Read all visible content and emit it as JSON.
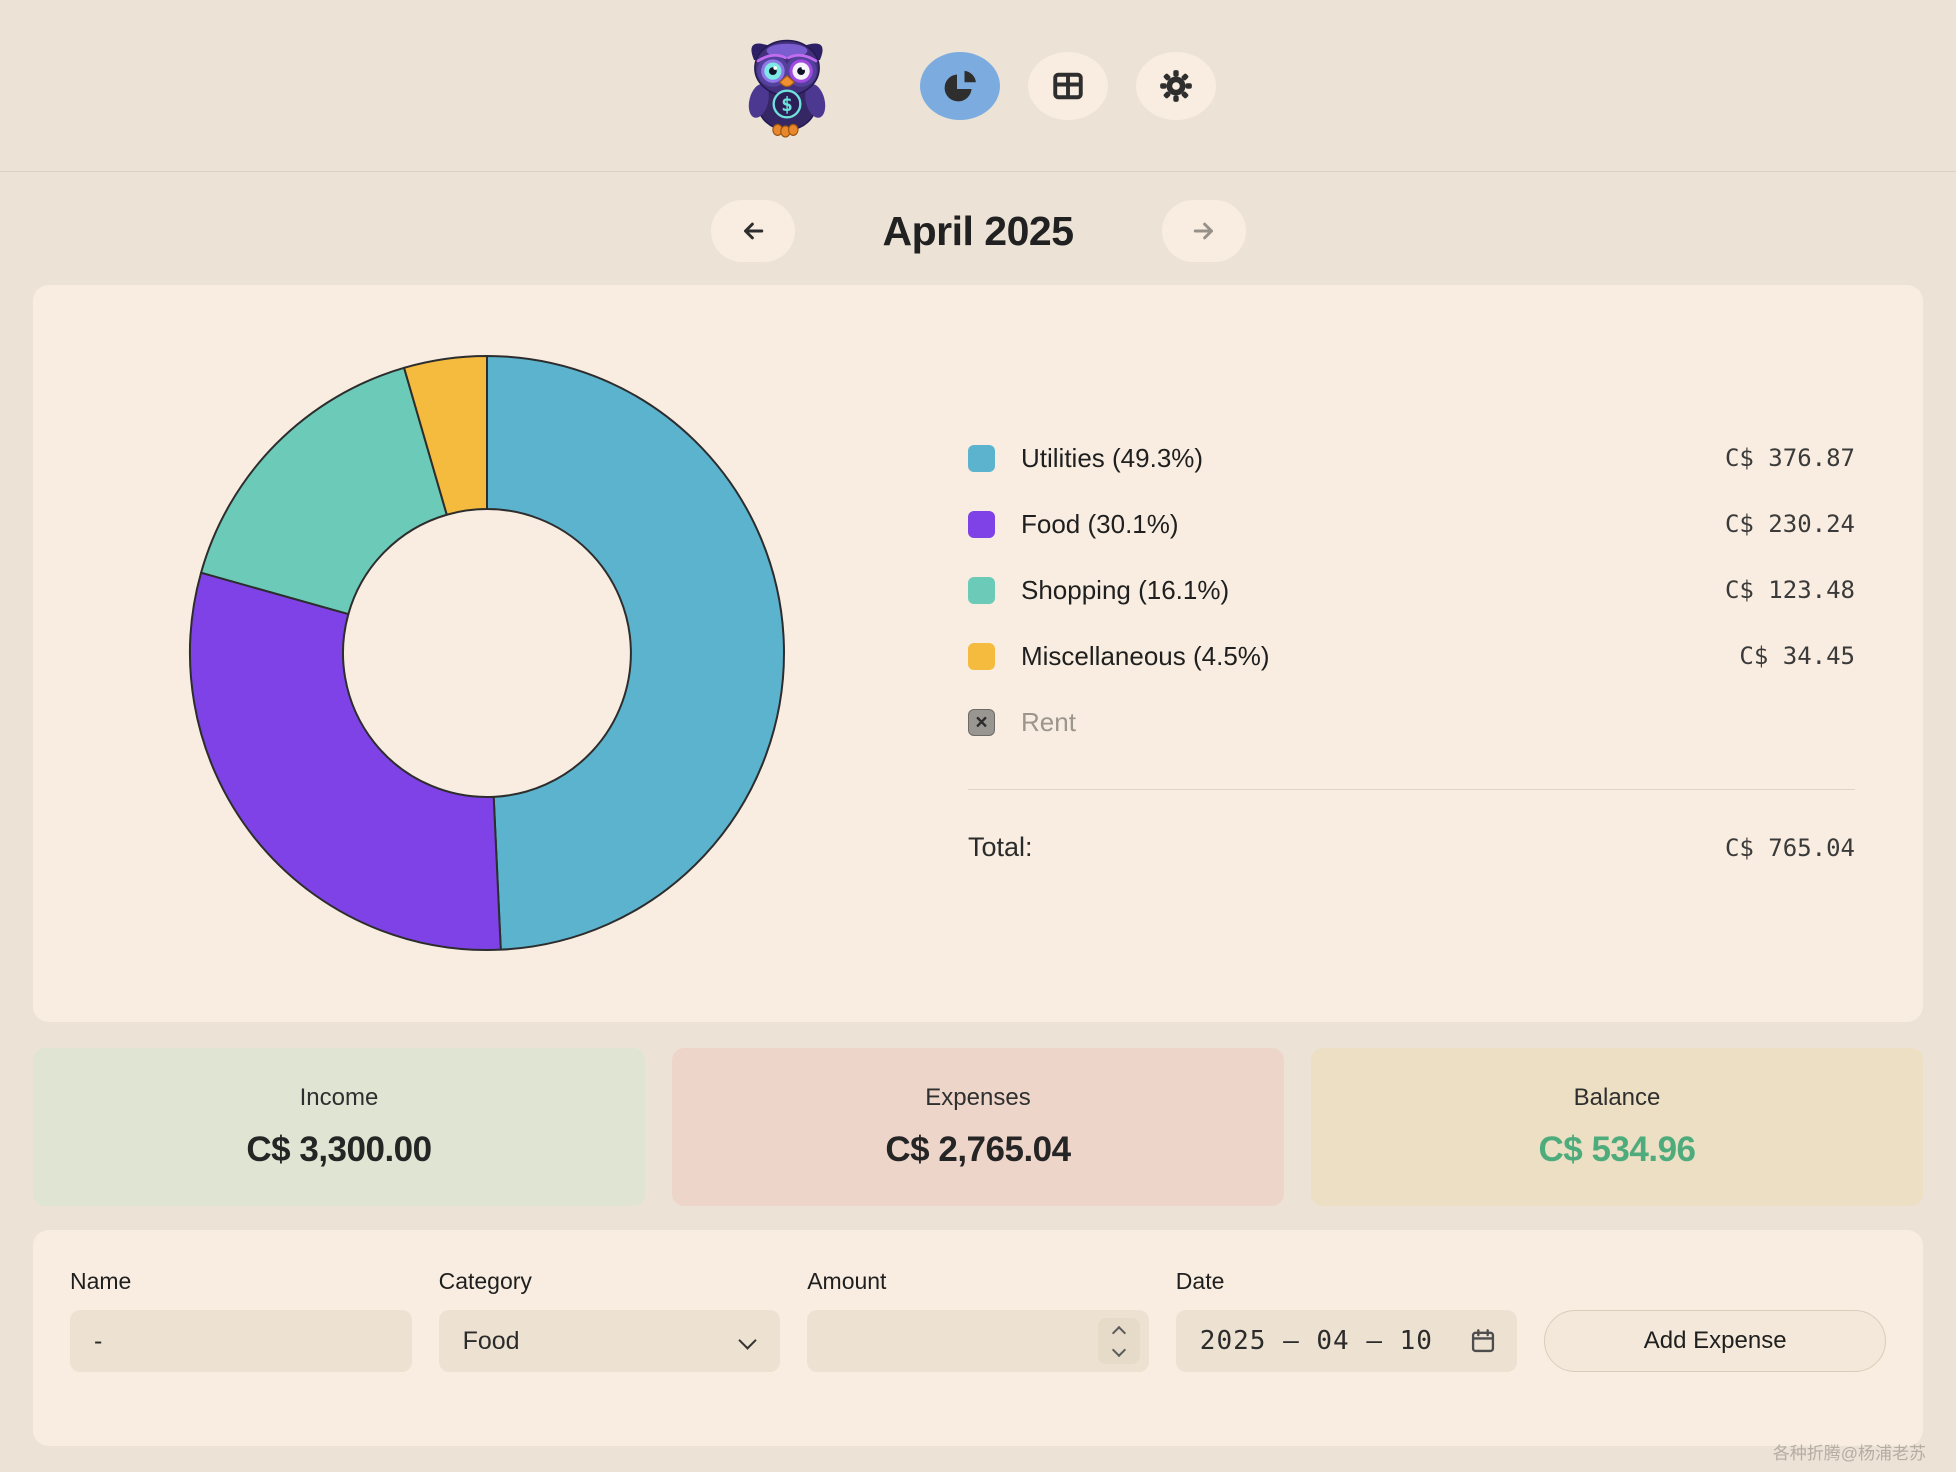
{
  "nav": {
    "logo_name": "owl-finance-logo",
    "buttons": [
      {
        "id": "pie-chart",
        "active": true
      },
      {
        "id": "table",
        "active": false
      },
      {
        "id": "settings",
        "active": false
      }
    ]
  },
  "month_nav": {
    "title": "April 2025"
  },
  "chart_data": {
    "type": "pie",
    "style": "donut",
    "title": "",
    "categories": [
      "Utilities",
      "Food",
      "Shopping",
      "Miscellaneous"
    ],
    "values": [
      376.87,
      230.24,
      123.48,
      34.45
    ],
    "percentages": [
      49.3,
      30.1,
      16.1,
      4.5
    ],
    "colors": [
      "#5CB3CE",
      "#7F42E6",
      "#6CCAB8",
      "#F4BB3E"
    ],
    "excluded_categories": [
      "Rent"
    ],
    "total": 765.04,
    "currency": "C$",
    "legend_position": "right",
    "outline_color": "#2D2D2D"
  },
  "legend": {
    "items": [
      {
        "label": "Utilities (49.3%)",
        "amount": "C$ 376.87",
        "color": "#5CB3CE"
      },
      {
        "label": "Food (30.1%)",
        "amount": "C$ 230.24",
        "color": "#7F42E6"
      },
      {
        "label": "Shopping (16.1%)",
        "amount": "C$ 123.48",
        "color": "#6CCAB8"
      },
      {
        "label": "Miscellaneous (4.5%)",
        "amount": "C$ 34.45",
        "color": "#F4BB3E"
      }
    ],
    "excluded_item": {
      "label": "Rent",
      "x_glyph": "×"
    },
    "total_label": "Total:",
    "total_amount": "C$ 765.04"
  },
  "summary": {
    "income": {
      "label": "Income",
      "amount": "C$ 3,300.00",
      "bg": "#DFE4D3",
      "amount_color": "#252525"
    },
    "expenses": {
      "label": "Expenses",
      "amount": "C$ 2,765.04",
      "bg": "#EED5CA",
      "amount_color": "#252525"
    },
    "balance": {
      "label": "Balance",
      "amount": "C$ 534.96",
      "bg": "#ECDFC3",
      "amount_color": "#4EAC7C"
    }
  },
  "form": {
    "name": {
      "label": "Name",
      "value": "-"
    },
    "category": {
      "label": "Category",
      "value": "Food",
      "options": [
        "Food"
      ]
    },
    "amount": {
      "label": "Amount",
      "value": ""
    },
    "date": {
      "label": "Date",
      "value": "2025 – 04 – 10"
    },
    "submit_label": "Add Expense"
  },
  "watermark": "各种折腾@杨浦老苏"
}
